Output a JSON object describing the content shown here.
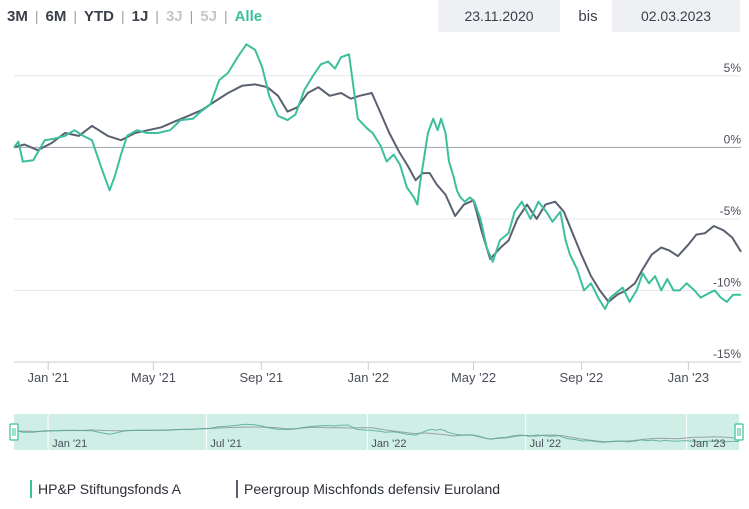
{
  "ranges": [
    {
      "label": "3M",
      "state": "normal"
    },
    {
      "label": "6M",
      "state": "normal"
    },
    {
      "label": "YTD",
      "state": "normal"
    },
    {
      "label": "1J",
      "state": "normal"
    },
    {
      "label": "3J",
      "state": "disabled"
    },
    {
      "label": "5J",
      "state": "disabled"
    },
    {
      "label": "Alle",
      "state": "active"
    }
  ],
  "date_from": "23.11.2020",
  "date_to": "02.03.2023",
  "bis_label": "bis",
  "colors": {
    "fund": "#3cbf9d",
    "peer": "#5a6070",
    "grid": "#e4e6ea",
    "axis": "#c9ccd2",
    "navigator_fill": "#cfeee6"
  },
  "chart_data": {
    "type": "line",
    "x_range": [
      "2020-11-23",
      "2023-03-02"
    ],
    "ylim": [
      -15,
      7.5
    ],
    "y_ticks": [
      5,
      0,
      -5,
      -10,
      -15
    ],
    "y_tick_labels": [
      "5%",
      "0%",
      "-5%",
      "-10%",
      "-15%"
    ],
    "x_tick_labels": [
      "Jan '21",
      "May '21",
      "Sep '21",
      "Jan '22",
      "May '22",
      "Sep '22",
      "Jan '23"
    ],
    "x_ticks": [
      "2021-01-01",
      "2021-05-01",
      "2021-09-01",
      "2022-01-01",
      "2022-05-01",
      "2022-09-01",
      "2023-01-01"
    ],
    "navigator_tick_labels": [
      "Jan '21",
      "Jul '21",
      "Jan '22",
      "Jul '22",
      "Jan '23"
    ],
    "navigator_ticks": [
      "2021-01-01",
      "2021-07-01",
      "2022-01-01",
      "2022-07-01",
      "2023-01-01"
    ],
    "grid": "horizontal",
    "legend_position": "bottom-left",
    "series": [
      {
        "name": "HP&P Stiftungsfonds A",
        "x": [
          "2020-11-23",
          "2020-11-28",
          "2020-12-03",
          "2020-12-15",
          "2020-12-28",
          "2021-01-08",
          "2021-01-20",
          "2021-01-31",
          "2021-02-10",
          "2021-02-20",
          "2021-03-03",
          "2021-03-12",
          "2021-03-18",
          "2021-03-25",
          "2021-04-01",
          "2021-04-12",
          "2021-04-24",
          "2021-05-06",
          "2021-05-20",
          "2021-06-01",
          "2021-06-15",
          "2021-06-24",
          "2021-07-05",
          "2021-07-15",
          "2021-07-25",
          "2021-08-05",
          "2021-08-15",
          "2021-08-25",
          "2021-09-02",
          "2021-09-10",
          "2021-09-20",
          "2021-10-01",
          "2021-10-10",
          "2021-10-20",
          "2021-10-30",
          "2021-11-08",
          "2021-11-16",
          "2021-11-24",
          "2021-12-01",
          "2021-12-10",
          "2021-12-20",
          "2021-12-31",
          "2022-01-06",
          "2022-01-15",
          "2022-01-22",
          "2022-01-30",
          "2022-02-06",
          "2022-02-14",
          "2022-02-22",
          "2022-02-26",
          "2022-03-01",
          "2022-03-05",
          "2022-03-10",
          "2022-03-16",
          "2022-03-21",
          "2022-03-25",
          "2022-03-30",
          "2022-04-03",
          "2022-04-08",
          "2022-04-12",
          "2022-04-16",
          "2022-04-21",
          "2022-04-27",
          "2022-05-02",
          "2022-05-09",
          "2022-05-16",
          "2022-05-23",
          "2022-05-31",
          "2022-06-10",
          "2022-06-17",
          "2022-06-25",
          "2022-07-05",
          "2022-07-14",
          "2022-07-23",
          "2022-07-30",
          "2022-08-08",
          "2022-08-14",
          "2022-08-19",
          "2022-08-27",
          "2022-09-04",
          "2022-09-12",
          "2022-09-20",
          "2022-09-28",
          "2022-10-04",
          "2022-10-10",
          "2022-10-18",
          "2022-10-26",
          "2022-11-03",
          "2022-11-10",
          "2022-11-17",
          "2022-11-24",
          "2022-12-01",
          "2022-12-08",
          "2022-12-15",
          "2022-12-22",
          "2022-12-30",
          "2023-01-08",
          "2023-01-15",
          "2023-01-24",
          "2023-01-31",
          "2023-02-07",
          "2023-02-14",
          "2023-02-21",
          "2023-02-27",
          "2023-03-02"
        ],
        "y": [
          0,
          0.4,
          -1.0,
          -0.9,
          0.5,
          0.6,
          0.8,
          1.2,
          0.8,
          0.5,
          -1.5,
          -3.0,
          -2.0,
          -0.5,
          0.8,
          1.2,
          1.0,
          1.0,
          1.2,
          1.9,
          2.0,
          2.5,
          3.0,
          4.7,
          5.2,
          6.3,
          7.2,
          6.8,
          5.6,
          3.6,
          2.2,
          1.9,
          2.3,
          4.0,
          5.0,
          5.8,
          6.0,
          5.5,
          6.3,
          6.5,
          2.0,
          1.3,
          1.0,
          0.1,
          -1.0,
          -0.5,
          -1.2,
          -2.8,
          -3.5,
          -4.0,
          -2.5,
          -1.0,
          1.0,
          2.0,
          1.2,
          2.0,
          1.0,
          -1.0,
          -2.0,
          -3.0,
          -3.5,
          -3.8,
          -3.5,
          -3.8,
          -5.0,
          -7.0,
          -8.0,
          -6.5,
          -6.0,
          -4.5,
          -3.8,
          -5.0,
          -3.8,
          -4.5,
          -5.2,
          -4.5,
          -6.5,
          -7.5,
          -8.5,
          -10.0,
          -9.5,
          -10.5,
          -11.3,
          -10.5,
          -10.2,
          -9.8,
          -10.8,
          -10.0,
          -8.8,
          -9.5,
          -9.0,
          -10.0,
          -9.2,
          -10.0,
          -10.0,
          -9.5,
          -10.0,
          -10.5,
          -10.2,
          -10.0,
          -10.5,
          -10.8,
          -10.3,
          -10.3,
          -10.3
        ]
      },
      {
        "name": "Peergroup Mischfonds defensiv Euroland",
        "x": [
          "2020-11-23",
          "2020-12-05",
          "2020-12-20",
          "2021-01-05",
          "2021-01-20",
          "2021-02-05",
          "2021-02-20",
          "2021-03-10",
          "2021-03-25",
          "2021-04-10",
          "2021-04-25",
          "2021-05-10",
          "2021-05-25",
          "2021-06-10",
          "2021-06-25",
          "2021-07-10",
          "2021-07-25",
          "2021-08-10",
          "2021-08-25",
          "2021-09-08",
          "2021-09-20",
          "2021-10-01",
          "2021-10-12",
          "2021-10-24",
          "2021-11-05",
          "2021-11-18",
          "2021-12-01",
          "2021-12-12",
          "2021-12-22",
          "2022-01-05",
          "2022-01-15",
          "2022-01-25",
          "2022-02-05",
          "2022-02-15",
          "2022-02-24",
          "2022-03-04",
          "2022-03-12",
          "2022-03-20",
          "2022-03-30",
          "2022-04-10",
          "2022-04-20",
          "2022-05-01",
          "2022-05-10",
          "2022-05-20",
          "2022-06-01",
          "2022-06-10",
          "2022-06-20",
          "2022-07-01",
          "2022-07-12",
          "2022-07-22",
          "2022-08-02",
          "2022-08-12",
          "2022-08-22",
          "2022-09-01",
          "2022-09-12",
          "2022-09-22",
          "2022-10-02",
          "2022-10-12",
          "2022-10-22",
          "2022-11-01",
          "2022-11-10",
          "2022-11-20",
          "2022-12-01",
          "2022-12-10",
          "2022-12-20",
          "2023-01-01",
          "2023-01-10",
          "2023-01-20",
          "2023-01-30",
          "2023-02-10",
          "2023-02-20",
          "2023-03-02"
        ],
        "y": [
          0,
          0.2,
          -0.2,
          0.3,
          1.0,
          0.8,
          1.5,
          0.8,
          0.5,
          1.0,
          1.2,
          1.4,
          1.8,
          2.2,
          2.6,
          3.2,
          3.8,
          4.3,
          4.4,
          4.2,
          3.6,
          2.5,
          2.8,
          3.8,
          4.2,
          3.6,
          3.8,
          3.4,
          3.6,
          3.8,
          2.4,
          1.0,
          -0.3,
          -1.3,
          -2.3,
          -1.8,
          -1.8,
          -2.6,
          -3.3,
          -4.8,
          -4.0,
          -3.7,
          -5.8,
          -7.8,
          -7.0,
          -6.5,
          -5.0,
          -4.0,
          -5.0,
          -4.0,
          -3.8,
          -4.5,
          -6.0,
          -7.5,
          -9.0,
          -10.0,
          -10.8,
          -10.3,
          -10.0,
          -9.5,
          -8.5,
          -7.5,
          -7.0,
          -7.2,
          -7.6,
          -6.8,
          -6.1,
          -6.0,
          -5.5,
          -5.8,
          -6.3,
          -7.3
        ]
      }
    ]
  },
  "legend": {
    "fund": "HP&P Stiftungsfonds A",
    "peer": "Peergroup Mischfonds defensiv Euroland"
  }
}
